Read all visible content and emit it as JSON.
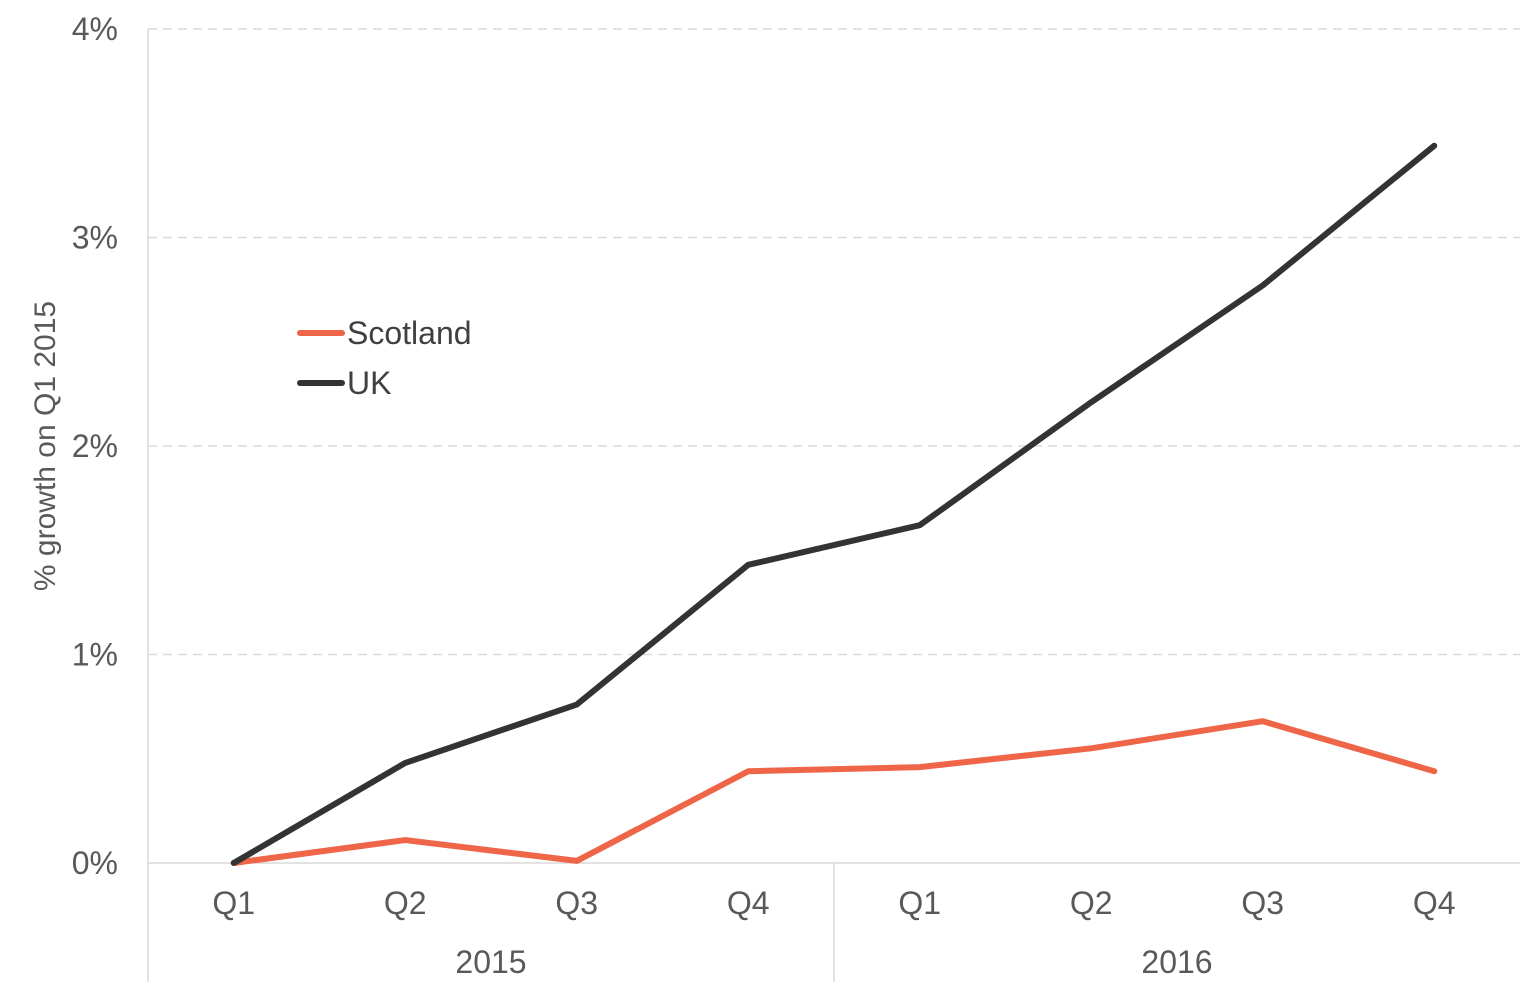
{
  "chart_data": {
    "type": "line",
    "title": "",
    "ylabel": "% growth on Q1 2015",
    "xlabel": "",
    "ylim": [
      0,
      4
    ],
    "y_ticks": [
      "0%",
      "1%",
      "2%",
      "3%",
      "4%"
    ],
    "categories": [
      "Q1",
      "Q2",
      "Q3",
      "Q4",
      "Q1",
      "Q2",
      "Q3",
      "Q4"
    ],
    "category_groups": [
      {
        "label": "2015",
        "count": 4
      },
      {
        "label": "2016",
        "count": 4
      }
    ],
    "grid": true,
    "legend_position": "left",
    "series": [
      {
        "name": "Scotland",
        "color": "#ef6548",
        "values": [
          0.0,
          0.11,
          0.01,
          0.44,
          0.46,
          0.55,
          0.68,
          0.44
        ]
      },
      {
        "name": "UK",
        "color": "#333333",
        "values": [
          0.0,
          0.48,
          0.76,
          1.43,
          1.62,
          2.21,
          2.77,
          3.44
        ]
      }
    ]
  }
}
